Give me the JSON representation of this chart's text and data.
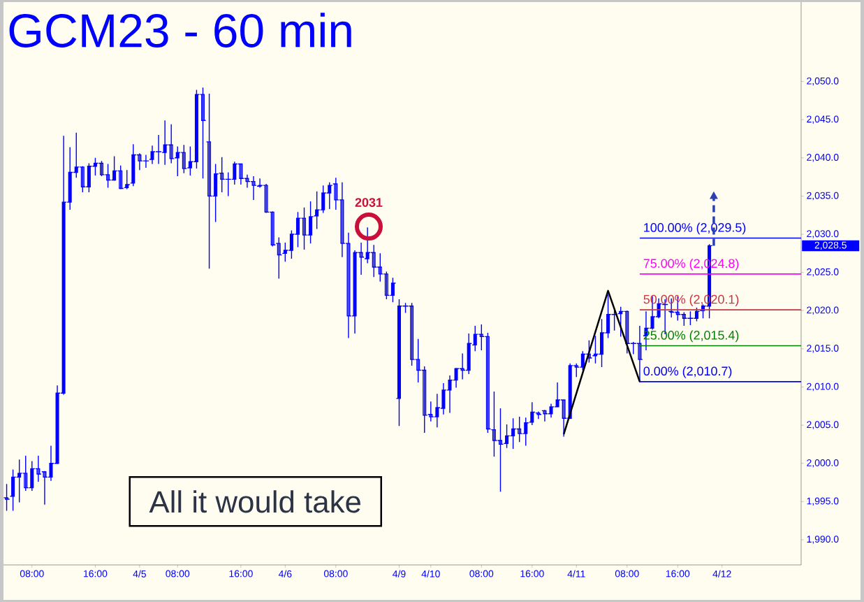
{
  "chart_data": {
    "type": "candlestick",
    "title": "GCM23 - 60 min",
    "color": "#0000ff",
    "categories": [
      null,
      null,
      null,
      null,
      "08:00",
      null,
      null,
      null,
      null,
      null,
      null,
      null,
      null,
      null,
      "16:00",
      null,
      null,
      null,
      null,
      null,
      null,
      "4/5",
      null,
      null,
      null,
      null,
      null,
      "08:00",
      null,
      null,
      null,
      null,
      null,
      null,
      null,
      null,
      null,
      "16:00",
      null,
      null,
      null,
      null,
      null,
      null,
      "4/6",
      null,
      null,
      null,
      null,
      null,
      null,
      null,
      "08:00",
      null,
      null,
      null,
      null,
      null,
      null,
      null,
      null,
      null,
      "4/9",
      null,
      null,
      null,
      null,
      "4/10",
      null,
      null,
      null,
      null,
      null,
      null,
      null,
      "08:00",
      null,
      null,
      null,
      null,
      null,
      null,
      null,
      "16:00",
      null,
      null,
      null,
      null,
      null,
      null,
      "4/11",
      null,
      null,
      null,
      null,
      null,
      null,
      null,
      "08:00",
      null,
      null,
      null,
      null,
      null,
      null,
      null,
      "16:00",
      null,
      null,
      null,
      null,
      null,
      null,
      "4/12",
      null,
      null,
      null,
      null,
      null,
      null,
      null,
      null,
      null,
      null,
      null,
      null
    ],
    "ohlc": [
      [
        1995.5,
        1997.3,
        1993.8,
        1995.3
      ],
      [
        1995.7,
        1999.2,
        1993.8,
        1998.2
      ],
      [
        1998.2,
        2000.5,
        1994.9,
        1998.7
      ],
      [
        1998.7,
        2001.0,
        1996.4,
        1996.8
      ],
      [
        1996.8,
        2000.3,
        1996.4,
        1999.3
      ],
      [
        1999.3,
        2001.0,
        1997.6,
        1998.6
      ],
      [
        1998.9,
        1999.0,
        1994.6,
        1998.2
      ],
      [
        1998.2,
        2002.3,
        1997.7,
        2000.0
      ],
      [
        2000.0,
        2010.2,
        1999.9,
        2009.2
      ],
      [
        2009.2,
        2042.9,
        2009.0,
        2034.2
      ],
      [
        2034.2,
        2041.4,
        2033.2,
        2038.1
      ],
      [
        2038.1,
        2043.3,
        2037.4,
        2038.8
      ],
      [
        2038.8,
        2038.9,
        2035.5,
        2036.2
      ],
      [
        2036.2,
        2039.3,
        2035.5,
        2038.9
      ],
      [
        2038.9,
        2040.0,
        2037.7,
        2039.3
      ],
      [
        2039.3,
        2039.6,
        2037.6,
        2037.8
      ],
      [
        2037.8,
        2039.2,
        2036.1,
        2037.1
      ],
      [
        2037.1,
        2040.2,
        2037.0,
        2038.3
      ],
      [
        2038.3,
        2039.0,
        2035.9,
        2036.0
      ],
      [
        2036.1,
        2038.4,
        2035.9,
        2036.5
      ],
      [
        2036.7,
        2041.8,
        2036.3,
        2040.4
      ],
      [
        2040.4,
        2040.6,
        2038.4,
        2039.6
      ],
      [
        2039.6,
        2040.4,
        2038.7,
        2039.6
      ],
      [
        2039.8,
        2041.6,
        2039.2,
        2040.8
      ],
      [
        2040.8,
        2043.0,
        2039.2,
        2040.8
      ],
      [
        2040.7,
        2044.9,
        2039.1,
        2041.7
      ],
      [
        2041.7,
        2044.4,
        2039.3,
        2039.9
      ],
      [
        2040.0,
        2041.5,
        2037.6,
        2040.7
      ],
      [
        2040.7,
        2041.7,
        2038.0,
        2038.6
      ],
      [
        2038.7,
        2041.5,
        2037.7,
        2039.5
      ],
      [
        2039.5,
        2048.9,
        2038.6,
        2048.3
      ],
      [
        2048.3,
        2049.2,
        2037.3,
        2044.9
      ],
      [
        2042.1,
        2048.4,
        2025.5,
        2035.0
      ],
      [
        2035.0,
        2039.2,
        2031.6,
        2037.9
      ],
      [
        2038.0,
        2040.1,
        2035.5,
        2037.2
      ],
      [
        2037.2,
        2038.1,
        2035.0,
        2037.2
      ],
      [
        2037.2,
        2039.5,
        2036.5,
        2039.2
      ],
      [
        2039.2,
        2039.2,
        2036.5,
        2037.3
      ],
      [
        2037.3,
        2037.8,
        2036.1,
        2036.9
      ],
      [
        2036.9,
        2037.6,
        2034.5,
        2036.4
      ],
      [
        2036.3,
        2037.3,
        2036.1,
        2036.4
      ],
      [
        2036.4,
        2036.6,
        2032.8,
        2032.9
      ],
      [
        2032.9,
        2033.0,
        2028.4,
        2028.6
      ],
      [
        2028.8,
        2029.6,
        2024.2,
        2027.3
      ],
      [
        2027.5,
        2028.9,
        2026.4,
        2027.9
      ],
      [
        2027.9,
        2030.5,
        2026.8,
        2030.0
      ],
      [
        2030.0,
        2032.9,
        2028.3,
        2032.1
      ],
      [
        2032.1,
        2033.5,
        2028.0,
        2029.9
      ],
      [
        2029.9,
        2034.3,
        2028.8,
        2032.3
      ],
      [
        2032.4,
        2035.6,
        2030.7,
        2033.2
      ],
      [
        2033.2,
        2036.4,
        2032.8,
        2035.4
      ],
      [
        2035.4,
        2036.8,
        2033.3,
        2036.4
      ],
      [
        2036.6,
        2037.4,
        2033.2,
        2034.5
      ],
      [
        2034.5,
        2036.8,
        2027.0,
        2028.8
      ],
      [
        2028.8,
        2030.2,
        2016.4,
        2019.3
      ],
      [
        2019.3,
        2027.9,
        2017.0,
        2027.6
      ],
      [
        2027.6,
        2028.9,
        2024.7,
        2027.0
      ],
      [
        2026.8,
        2030.9,
        2026.2,
        2027.6
      ],
      [
        2027.6,
        2028.6,
        2024.4,
        2025.7
      ],
      [
        2025.7,
        2027.5,
        2023.8,
        2024.8
      ],
      [
        2024.8,
        2025.1,
        2021.5,
        2022.0
      ],
      [
        2022.0,
        2024.3,
        2021.1,
        2023.6
      ],
      [
        2008.5,
        2021.5,
        2004.9,
        2020.6
      ],
      [
        2020.6,
        2021.0,
        2019.7,
        2020.6
      ],
      [
        2020.6,
        2021.0,
        2012.8,
        2013.6
      ],
      [
        2013.6,
        2016.3,
        2010.6,
        2012.2
      ],
      [
        2012.2,
        2012.7,
        2004.0,
        2006.3
      ],
      [
        2006.4,
        2008.1,
        2005.5,
        2006.1
      ],
      [
        2006.1,
        2009.1,
        2004.7,
        2007.3
      ],
      [
        2007.2,
        2010.5,
        2006.4,
        2009.6
      ],
      [
        2009.6,
        2011.5,
        2006.6,
        2010.9
      ],
      [
        2010.9,
        2012.5,
        2009.9,
        2012.4
      ],
      [
        2012.4,
        2014.4,
        2011.0,
        2012.2
      ],
      [
        2012.2,
        2017.0,
        2011.7,
        2015.7
      ],
      [
        2015.5,
        2018.0,
        2014.7,
        2016.9
      ],
      [
        2016.9,
        2018.2,
        2014.8,
        2016.6
      ],
      [
        2016.6,
        2017.1,
        2004.0,
        2004.5
      ],
      [
        2004.4,
        2009.4,
        2000.9,
        2003.0
      ],
      [
        2003.0,
        2007.2,
        1996.3,
        2002.5
      ],
      [
        2002.6,
        2005.1,
        2002.0,
        2003.6
      ],
      [
        2003.6,
        2005.9,
        2001.9,
        2004.5
      ],
      [
        2004.5,
        2006.1,
        2002.8,
        2003.9
      ],
      [
        2003.9,
        2006.0,
        2002.3,
        2005.3
      ],
      [
        2005.4,
        2008.0,
        2005.0,
        2006.7
      ],
      [
        2006.6,
        2006.8,
        2005.8,
        2006.4
      ],
      [
        2006.9,
        2007.0,
        2005.5,
        2006.5
      ],
      [
        2006.5,
        2007.8,
        2006.0,
        2007.4
      ],
      [
        2007.4,
        2010.6,
        2007.4,
        2008.3
      ],
      [
        2008.3,
        2008.3,
        2003.5,
        2005.9
      ],
      [
        2005.9,
        2013.1,
        2005.8,
        2012.8
      ],
      [
        2012.8,
        2013.1,
        2011.3,
        2012.6
      ],
      [
        2012.6,
        2014.7,
        2012.2,
        2014.3
      ],
      [
        2014.3,
        2016.1,
        2013.2,
        2013.8
      ],
      [
        2014.1,
        2016.7,
        2013.1,
        2014.3
      ],
      [
        2014.3,
        2018.9,
        2012.6,
        2017.1
      ],
      [
        2017.1,
        2022.1,
        2016.4,
        2019.5
      ],
      [
        2019.5,
        2020.0,
        2017.4,
        2019.5
      ],
      [
        2019.6,
        2020.5,
        2016.6,
        2019.9
      ],
      [
        2019.9,
        2020.0,
        2014.4,
        2015.7
      ],
      [
        2015.7,
        2015.9,
        2014.3,
        2015.7
      ],
      [
        2015.7,
        2018.0,
        2010.6,
        2013.6
      ],
      [
        2016.7,
        2019.9,
        2014.8,
        2017.7
      ],
      [
        2017.7,
        2021.9,
        2017.5,
        2019.2
      ],
      [
        2019.2,
        2021.6,
        2019.0,
        2020.9
      ],
      [
        2020.8,
        2021.5,
        2016.9,
        2020.8
      ],
      [
        2019.9,
        2021.6,
        2019.1,
        2019.8
      ],
      [
        2019.8,
        2021.9,
        2018.7,
        2019.5
      ],
      [
        2019.5,
        2019.8,
        2018.0,
        2019.0
      ],
      [
        2019.0,
        2019.9,
        2018.1,
        2019.0
      ],
      [
        2019.0,
        2020.4,
        2018.6,
        2019.9
      ],
      [
        2020.0,
        2020.8,
        2019.0,
        2020.6
      ],
      [
        2020.6,
        2028.7,
        2019.0,
        2028.5
      ],
      null,
      null,
      null,
      null,
      null,
      null,
      null,
      null,
      null,
      null,
      null,
      null,
      null,
      null
    ],
    "series": [
      {
        "type": "line",
        "color": "#000000",
        "values": [
          null,
          null,
          null,
          null,
          null,
          null,
          null,
          null,
          null,
          null,
          null,
          null,
          null,
          null,
          null,
          null,
          null,
          null,
          null,
          null,
          null,
          null,
          null,
          null,
          null,
          null,
          null,
          null,
          null,
          null,
          null,
          null,
          null,
          null,
          null,
          null,
          null,
          null,
          null,
          null,
          null,
          null,
          null,
          null,
          null,
          null,
          null,
          null,
          null,
          null,
          null,
          null,
          null,
          null,
          null,
          null,
          null,
          null,
          null,
          null,
          null,
          null,
          null,
          null,
          null,
          null,
          null,
          null,
          null,
          null,
          null,
          null,
          null,
          null,
          null,
          null,
          null,
          null,
          null,
          null,
          null,
          null,
          null,
          null,
          null,
          null,
          null,
          null,
          2003.8,
          null,
          null,
          null,
          null,
          null,
          null,
          2022.6,
          null,
          null,
          null,
          null,
          2010.7,
          null,
          null,
          null,
          null,
          null,
          null,
          null,
          null,
          null,
          null,
          null,
          null,
          null,
          null,
          null,
          null,
          null,
          null,
          null,
          null,
          null,
          null,
          null,
          null,
          null
        ]
      }
    ],
    "ylim": [
      1986.7,
      2060.4
    ],
    "yticks": [
      {
        "value": 1990,
        "label": "1,990.0"
      },
      {
        "value": 1995,
        "label": "1,995.0"
      },
      {
        "value": 2000,
        "label": "2,000.0"
      },
      {
        "value": 2005,
        "label": "2,005.0"
      },
      {
        "value": 2010,
        "label": "2,010.0"
      },
      {
        "value": 2015,
        "label": "2,015.0"
      },
      {
        "value": 2020,
        "label": "2,020.0"
      },
      {
        "value": 2025,
        "label": "2,025.0"
      },
      {
        "value": 2030,
        "label": "2,030.0"
      },
      {
        "value": 2035,
        "label": "2,035.0"
      },
      {
        "value": 2040,
        "label": "2,040.0"
      },
      {
        "value": 2045,
        "label": "2,045.0"
      },
      {
        "value": 2050,
        "label": "2,050.0"
      }
    ],
    "ref_lines": [
      {
        "axis": "y",
        "value": 2029.5,
        "label": "100.00% (2,029.5)",
        "color": "#0000ff"
      },
      {
        "axis": "y",
        "value": 2024.8,
        "label": "75.00% (2,024.8)",
        "color": "#ff00ff"
      },
      {
        "axis": "y",
        "value": 2020.1,
        "label": "50.00% (2,020.1)",
        "color": "#cc3344"
      },
      {
        "axis": "y",
        "value": 2015.4,
        "label": "25.00% (2,015.4)",
        "color": "#008000"
      },
      {
        "axis": "y",
        "value": 2010.7,
        "label": "0.00% (2,010.7)",
        "color": "#0000ff"
      }
    ],
    "annotations": [
      {
        "text": "2031",
        "y": 2031
      },
      "All it would take",
      "2,028.5"
    ]
  }
}
